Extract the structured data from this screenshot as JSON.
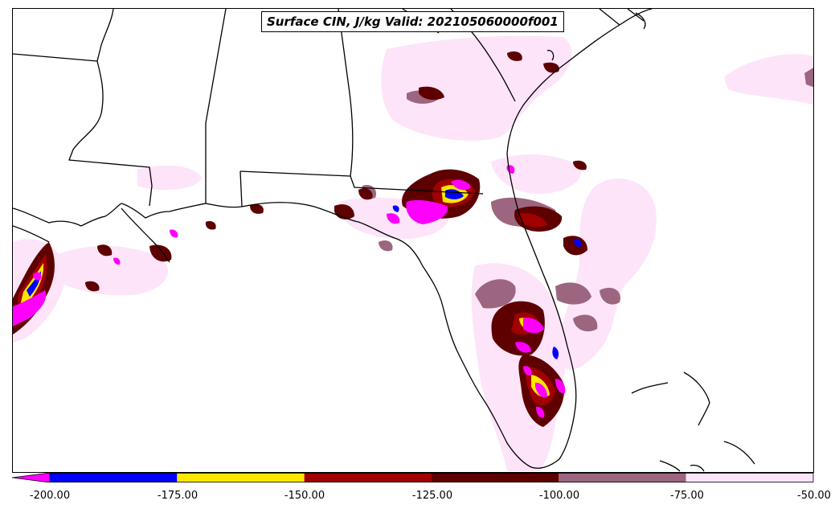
{
  "title": "Surface CIN, J/kg Valid: 202105060000f001",
  "colorbar": {
    "ticks": [
      "-200.00",
      "-175.00",
      "-150.00",
      "-125.00",
      "-100.00",
      "-75.00",
      "-50.00"
    ],
    "bins": [
      {
        "from": -200,
        "to": -175,
        "color": "#0000ff"
      },
      {
        "from": -175,
        "to": -150,
        "color": "#ffe600"
      },
      {
        "from": -150,
        "to": -125,
        "color": "#a10000"
      },
      {
        "from": -125,
        "to": -100,
        "color": "#5e0000"
      },
      {
        "from": -100,
        "to": -75,
        "color": "#9c6680"
      },
      {
        "from": -75,
        "to": -50,
        "color": "#fde4f8"
      }
    ],
    "under_color": "#ff00ff",
    "range": [
      -200,
      -50
    ]
  }
}
